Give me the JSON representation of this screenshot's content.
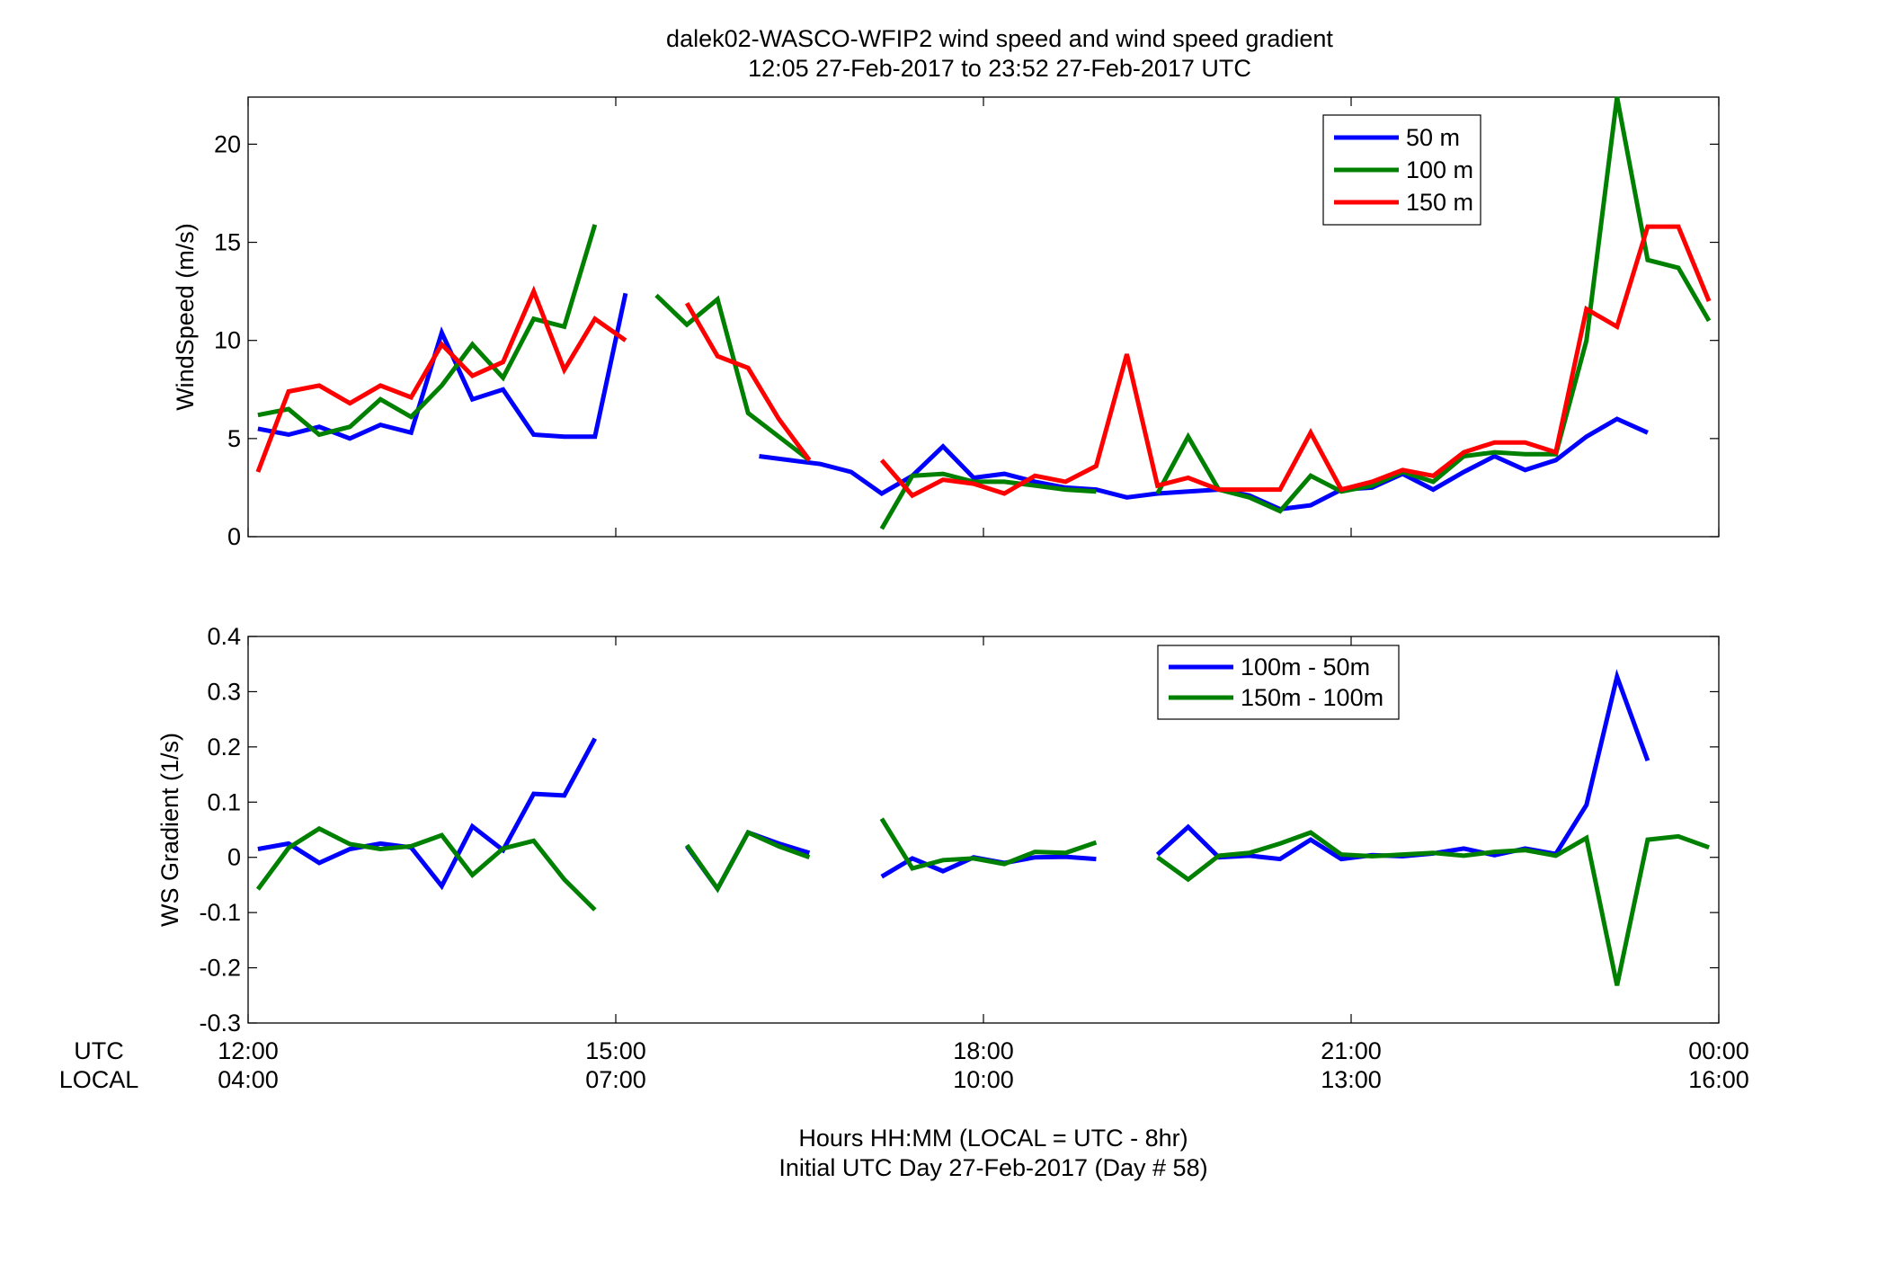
{
  "title_line1": "dalek02-WASCO-WFIP2  wind speed and wind speed gradient",
  "title_line2": "12:05 27-Feb-2017 to 23:52 27-Feb-2017  UTC",
  "row_label_utc": "UTC",
  "row_label_local": "LOCAL",
  "xlabel_line1": "Hours HH:MM  (LOCAL = UTC - 8hr)",
  "xlabel_line2": "Initial UTC Day 27-Feb-2017 (Day # 58)",
  "x_ticks": [
    {
      "hour": 12,
      "utc": "12:00",
      "local": "04:00"
    },
    {
      "hour": 15,
      "utc": "15:00",
      "local": "07:00"
    },
    {
      "hour": 18,
      "utc": "18:00",
      "local": "10:00"
    },
    {
      "hour": 21,
      "utc": "21:00",
      "local": "13:00"
    },
    {
      "hour": 24,
      "utc": "00:00",
      "local": "16:00"
    }
  ],
  "chart_data": [
    {
      "type": "line",
      "ylabel": "WindSpeed (m/s)",
      "xlim": [
        12,
        24
      ],
      "ylim": [
        0,
        22.4
      ],
      "y_ticks": [
        {
          "v": 0,
          "label": "0"
        },
        {
          "v": 5,
          "label": "5"
        },
        {
          "v": 10,
          "label": "10"
        },
        {
          "v": 15,
          "label": "15"
        },
        {
          "v": 20,
          "label": "20"
        }
      ],
      "legend_position": "top-right",
      "series": [
        {
          "name": "50 m",
          "color": "#0000ff",
          "points": [
            [
              12.08,
              5.5
            ],
            [
              12.33,
              5.2
            ],
            [
              12.58,
              5.6
            ],
            [
              12.83,
              5.0
            ],
            [
              13.08,
              5.7
            ],
            [
              13.33,
              5.3
            ],
            [
              13.58,
              10.4
            ],
            [
              13.83,
              7.0
            ],
            [
              14.08,
              7.5
            ],
            [
              14.33,
              5.2
            ],
            [
              14.58,
              5.1
            ],
            [
              14.83,
              5.1
            ],
            [
              15.08,
              12.4
            ],
            null,
            [
              16.17,
              4.1
            ],
            [
              16.42,
              3.9
            ],
            [
              16.67,
              3.7
            ],
            [
              16.92,
              3.3
            ],
            [
              17.17,
              2.2
            ],
            [
              17.42,
              3.1
            ],
            [
              17.67,
              4.6
            ],
            [
              17.92,
              3.0
            ],
            [
              18.17,
              3.2
            ],
            [
              18.42,
              2.8
            ],
            [
              18.67,
              2.5
            ],
            [
              18.92,
              2.4
            ],
            [
              19.17,
              2.0
            ],
            [
              19.42,
              2.2
            ],
            [
              19.67,
              2.3
            ],
            [
              19.92,
              2.4
            ],
            [
              20.17,
              2.1
            ],
            [
              20.42,
              1.4
            ],
            [
              20.67,
              1.6
            ],
            [
              20.92,
              2.4
            ],
            [
              21.17,
              2.5
            ],
            [
              21.42,
              3.2
            ],
            [
              21.67,
              2.4
            ],
            [
              21.92,
              3.3
            ],
            [
              22.17,
              4.1
            ],
            [
              22.42,
              3.4
            ],
            [
              22.67,
              3.9
            ],
            [
              22.92,
              5.1
            ],
            [
              23.17,
              6.0
            ],
            [
              23.42,
              5.3
            ]
          ]
        },
        {
          "name": "100 m",
          "color": "#008000",
          "points": [
            [
              12.08,
              6.2
            ],
            [
              12.33,
              6.5
            ],
            [
              12.58,
              5.2
            ],
            [
              12.83,
              5.6
            ],
            [
              13.08,
              7.0
            ],
            [
              13.33,
              6.1
            ],
            [
              13.58,
              7.7
            ],
            [
              13.83,
              9.8
            ],
            [
              14.08,
              8.1
            ],
            [
              14.33,
              11.1
            ],
            [
              14.58,
              10.7
            ],
            [
              14.83,
              15.9
            ],
            null,
            [
              15.33,
              12.3
            ],
            [
              15.58,
              10.8
            ],
            [
              15.83,
              12.1
            ],
            [
              16.08,
              6.3
            ],
            [
              16.33,
              5.1
            ],
            [
              16.58,
              3.9
            ],
            null,
            [
              17.17,
              0.4
            ],
            [
              17.42,
              3.1
            ],
            [
              17.67,
              3.2
            ],
            [
              17.92,
              2.8
            ],
            [
              18.17,
              2.8
            ],
            [
              18.42,
              2.6
            ],
            [
              18.67,
              2.4
            ],
            [
              18.92,
              2.3
            ],
            null,
            [
              19.42,
              2.2
            ],
            [
              19.67,
              5.1
            ],
            [
              19.92,
              2.4
            ],
            [
              20.17,
              2.0
            ],
            [
              20.42,
              1.3
            ],
            [
              20.67,
              3.1
            ],
            [
              20.92,
              2.3
            ],
            [
              21.17,
              2.6
            ],
            [
              21.42,
              3.3
            ],
            [
              21.67,
              2.8
            ],
            [
              21.92,
              4.1
            ],
            [
              22.17,
              4.3
            ],
            [
              22.42,
              4.2
            ],
            [
              22.67,
              4.2
            ],
            [
              22.92,
              10.0
            ],
            [
              23.17,
              22.4
            ],
            [
              23.42,
              14.1
            ],
            [
              23.67,
              13.7
            ],
            [
              23.92,
              11.0
            ]
          ]
        },
        {
          "name": "150 m",
          "color": "#ff0000",
          "points": [
            [
              12.08,
              3.3
            ],
            [
              12.33,
              7.4
            ],
            [
              12.58,
              7.7
            ],
            [
              12.83,
              6.8
            ],
            [
              13.08,
              7.7
            ],
            [
              13.33,
              7.1
            ],
            [
              13.58,
              9.8
            ],
            [
              13.83,
              8.2
            ],
            [
              14.08,
              8.9
            ],
            [
              14.33,
              12.5
            ],
            [
              14.58,
              8.5
            ],
            [
              14.83,
              11.1
            ],
            [
              15.08,
              10.0
            ],
            null,
            [
              15.58,
              11.9
            ],
            [
              15.83,
              9.2
            ],
            [
              16.08,
              8.6
            ],
            [
              16.33,
              6.0
            ],
            [
              16.58,
              3.9
            ],
            null,
            [
              17.17,
              3.9
            ],
            [
              17.42,
              2.1
            ],
            [
              17.67,
              2.9
            ],
            [
              17.92,
              2.7
            ],
            [
              18.17,
              2.2
            ],
            [
              18.42,
              3.1
            ],
            [
              18.67,
              2.8
            ],
            [
              18.92,
              3.6
            ],
            [
              19.17,
              9.3
            ],
            [
              19.42,
              2.6
            ],
            [
              19.67,
              3.0
            ],
            [
              19.92,
              2.4
            ],
            [
              20.17,
              2.4
            ],
            [
              20.42,
              2.4
            ],
            [
              20.67,
              5.3
            ],
            [
              20.92,
              2.4
            ],
            [
              21.17,
              2.8
            ],
            [
              21.42,
              3.4
            ],
            [
              21.67,
              3.1
            ],
            [
              21.92,
              4.3
            ],
            [
              22.17,
              4.8
            ],
            [
              22.42,
              4.8
            ],
            [
              22.67,
              4.3
            ],
            [
              22.92,
              11.6
            ],
            [
              23.17,
              10.7
            ],
            [
              23.42,
              15.8
            ],
            [
              23.67,
              15.8
            ],
            [
              23.92,
              12.0
            ]
          ]
        }
      ]
    },
    {
      "type": "line",
      "ylabel": "WS Gradient (1/s)",
      "xlim": [
        12,
        24
      ],
      "ylim": [
        -0.3,
        0.4
      ],
      "y_ticks": [
        {
          "v": -0.3,
          "label": "-0.3"
        },
        {
          "v": -0.2,
          "label": "-0.2"
        },
        {
          "v": -0.1,
          "label": "-0.1"
        },
        {
          "v": 0,
          "label": "0"
        },
        {
          "v": 0.1,
          "label": "0.1"
        },
        {
          "v": 0.2,
          "label": "0.2"
        },
        {
          "v": 0.3,
          "label": "0.3"
        },
        {
          "v": 0.4,
          "label": "0.4"
        }
      ],
      "legend_position": "top-right",
      "series": [
        {
          "name": "100m - 50m",
          "color": "#0000ff",
          "points": [
            [
              12.08,
              0.015
            ],
            [
              12.33,
              0.025
            ],
            [
              12.58,
              -0.01
            ],
            [
              12.83,
              0.015
            ],
            [
              13.08,
              0.025
            ],
            [
              13.33,
              0.018
            ],
            [
              13.58,
              -0.052
            ],
            [
              13.83,
              0.056
            ],
            [
              14.08,
              0.013
            ],
            [
              14.33,
              0.115
            ],
            [
              14.58,
              0.112
            ],
            [
              14.83,
              0.215
            ],
            null,
            [
              15.58,
              0.02
            ],
            [
              15.83,
              -0.057
            ],
            [
              16.08,
              0.045
            ],
            [
              16.33,
              0.025
            ],
            [
              16.58,
              0.008
            ],
            null,
            [
              17.17,
              -0.035
            ],
            [
              17.42,
              -0.002
            ],
            [
              17.67,
              -0.025
            ],
            [
              17.92,
              0.0
            ],
            [
              18.17,
              -0.01
            ],
            [
              18.42,
              0.0
            ],
            [
              18.67,
              0.001
            ],
            [
              18.92,
              -0.003
            ],
            null,
            [
              19.42,
              0.005
            ],
            [
              19.67,
              0.055
            ],
            [
              19.92,
              0.0
            ],
            [
              20.17,
              0.003
            ],
            [
              20.42,
              -0.003
            ],
            [
              20.67,
              0.032
            ],
            [
              20.92,
              -0.003
            ],
            [
              21.17,
              0.004
            ],
            [
              21.42,
              0.002
            ],
            [
              21.67,
              0.007
            ],
            [
              21.92,
              0.016
            ],
            [
              22.17,
              0.004
            ],
            [
              22.42,
              0.016
            ],
            [
              22.67,
              0.006
            ],
            [
              22.92,
              0.095
            ],
            [
              23.17,
              0.327
            ],
            [
              23.42,
              0.175
            ]
          ]
        },
        {
          "name": "150m - 100m",
          "color": "#008000",
          "points": [
            [
              12.08,
              -0.058
            ],
            [
              12.33,
              0.017
            ],
            [
              12.58,
              0.052
            ],
            [
              12.83,
              0.024
            ],
            [
              13.08,
              0.015
            ],
            [
              13.33,
              0.02
            ],
            [
              13.58,
              0.04
            ],
            [
              13.83,
              -0.032
            ],
            [
              14.08,
              0.016
            ],
            [
              14.33,
              0.03
            ],
            [
              14.58,
              -0.04
            ],
            [
              14.83,
              -0.095
            ],
            null,
            [
              15.58,
              0.022
            ],
            [
              15.83,
              -0.057
            ],
            [
              16.08,
              0.045
            ],
            [
              16.33,
              0.02
            ],
            [
              16.58,
              0.0
            ],
            null,
            [
              17.17,
              0.07
            ],
            [
              17.42,
              -0.02
            ],
            [
              17.67,
              -0.005
            ],
            [
              17.92,
              -0.002
            ],
            [
              18.17,
              -0.012
            ],
            [
              18.42,
              0.01
            ],
            [
              18.67,
              0.008
            ],
            [
              18.92,
              0.027
            ],
            null,
            [
              19.42,
              0.0
            ],
            [
              19.67,
              -0.04
            ],
            [
              19.92,
              0.003
            ],
            [
              20.17,
              0.008
            ],
            [
              20.42,
              0.025
            ],
            [
              20.67,
              0.045
            ],
            [
              20.92,
              0.005
            ],
            [
              21.17,
              0.002
            ],
            [
              21.42,
              0.005
            ],
            [
              21.67,
              0.008
            ],
            [
              21.92,
              0.003
            ],
            [
              22.17,
              0.01
            ],
            [
              22.42,
              0.013
            ],
            [
              22.67,
              0.003
            ],
            [
              22.92,
              0.035
            ],
            [
              23.17,
              -0.232
            ],
            [
              23.42,
              0.032
            ],
            [
              23.67,
              0.038
            ],
            [
              23.92,
              0.018
            ]
          ]
        }
      ]
    }
  ]
}
